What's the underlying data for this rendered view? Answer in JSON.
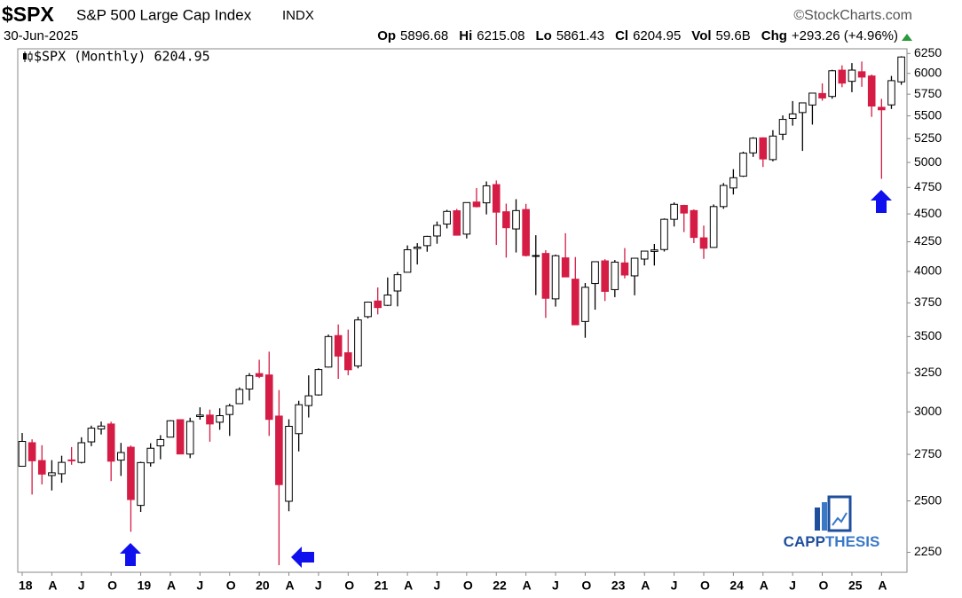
{
  "chart_data": {
    "type": "candlestick",
    "title": "$SPX",
    "subtitle": "S&P 500 Large Cap Index",
    "exchange": "INDX",
    "source": "©StockCharts.com",
    "date": "30-Jun-2025",
    "stats": [
      {
        "label": "Op",
        "value": "5896.68"
      },
      {
        "label": "Hi",
        "value": "6215.08"
      },
      {
        "label": "Lo",
        "value": "5861.43"
      },
      {
        "label": "Cl",
        "value": "6204.95"
      },
      {
        "label": "Vol",
        "value": "59.6B"
      },
      {
        "label": "Chg",
        "value": "+293.26 (+4.96%)"
      }
    ],
    "legend": "$SPX (Monthly) 6204.95",
    "logo": [
      "CAPP",
      "THESIS"
    ],
    "log_scale": true,
    "grid": false,
    "up_color": "#ffffff",
    "down_color": "#d41c45",
    "ylim": [
      2160,
      6310
    ],
    "yticks": [
      2250,
      2500,
      2750,
      3000,
      3250,
      3500,
      3750,
      4000,
      4250,
      4500,
      4750,
      5000,
      5250,
      5500,
      5750,
      6000,
      6250
    ],
    "categories": [
      "18",
      null,
      null,
      "A",
      null,
      null,
      "J",
      null,
      null,
      "O",
      null,
      null,
      "19",
      null,
      null,
      "A",
      null,
      null,
      "J",
      null,
      null,
      "O",
      null,
      null,
      "20",
      null,
      null,
      "A",
      null,
      null,
      "J",
      null,
      null,
      "O",
      null,
      null,
      "21",
      null,
      null,
      "A",
      null,
      null,
      "J",
      null,
      null,
      "O",
      null,
      null,
      "22",
      null,
      null,
      "A",
      null,
      null,
      "J",
      null,
      null,
      "O",
      null,
      null,
      "23",
      null,
      null,
      "A",
      null,
      null,
      "J",
      null,
      null,
      "O",
      null,
      null,
      "24",
      null,
      null,
      "A",
      null,
      null,
      "J",
      null,
      null,
      "O",
      null,
      null,
      "25",
      null,
      null,
      "A",
      null,
      null
    ],
    "open": [
      2683.73,
      2816.45,
      2715.22,
      2633.45,
      2642.96,
      2718.7,
      2704.95,
      2821.17,
      2896.96,
      2926.29,
      2717.58,
      2790.5,
      2476.96,
      2702.32,
      2798.22,
      2848.63,
      2952.33,
      2751.53,
      2971.41,
      2980.32,
      2937.09,
      2983.69,
      3050.72,
      3143.85,
      3244.67,
      3235.66,
      2974.28,
      2498.08,
      2869.09,
      3038.78,
      3105.92,
      3288.26,
      3507.44,
      3385.87,
      3296.2,
      3645.87,
      3764.61,
      3731.17,
      3842.51,
      3992.78,
      4191.98,
      4216.52,
      4300.73,
      4406.86,
      4528.8,
      4317.16,
      4610.62,
      4602.82,
      4778.14,
      4519.57,
      4363.14,
      4540.32,
      4130.61,
      4149.78,
      3781.0,
      4112.38,
      3936.73,
      3609.78,
      3901.79,
      4087.14,
      3853.29,
      4070.07,
      3963.34,
      4102.2,
      4166.79,
      4183.03,
      4450.48,
      4578.83,
      4530.6,
      4284.52,
      4201.27,
      4567.8,
      4745.2,
      4861.11,
      5098.51,
      5257.97,
      5029.03,
      5297.15,
      5471.08,
      5537.84,
      5623.89,
      5757.73,
      5723.22,
      6040.11,
      5903.26,
      6020.45,
      5968.33,
      5597.53,
      5625.14,
      5896.68
    ],
    "high": [
      2872.87,
      2835.96,
      2801.9,
      2717.49,
      2742.24,
      2791.47,
      2848.03,
      2916.5,
      2940.91,
      2939.86,
      2815.15,
      2800.18,
      2708.95,
      2813.49,
      2860.31,
      2949.52,
      2954.13,
      2964.15,
      3027.98,
      3013.59,
      3021.99,
      3050.1,
      3154.26,
      3247.93,
      3337.77,
      3393.52,
      3136.72,
      2954.86,
      3068.67,
      3233.13,
      3279.99,
      3514.77,
      3588.11,
      3549.85,
      3645.99,
      3760.2,
      3870.9,
      3950.43,
      3994.41,
      4218.78,
      4238.04,
      4302.43,
      4429.97,
      4537.36,
      4545.85,
      4608.08,
      4743.83,
      4808.93,
      4818.62,
      4595.31,
      4637.3,
      4593.45,
      4307.66,
      4177.51,
      4140.15,
      4325.28,
      4119.28,
      3905.42,
      4080.11,
      4100.96,
      4094.21,
      4195.44,
      4110.75,
      4170.06,
      4231.1,
      4458.48,
      4607.07,
      4584.62,
      4541.25,
      4393.57,
      4587.64,
      4793.3,
      4931.09,
      5111.06,
      5264.85,
      5263.95,
      5341.88,
      5505.53,
      5669.67,
      5651.62,
      5767.37,
      5878.46,
      6044.17,
      6099.97,
      6128.18,
      6147.43,
      5986.09,
      5695.31,
      5968.61,
      6215.08
    ],
    "low": [
      2682.36,
      2532.69,
      2585.89,
      2553.8,
      2594.62,
      2691.99,
      2698.95,
      2796.34,
      2864.12,
      2603.54,
      2631.09,
      2346.58,
      2443.96,
      2681.83,
      2722.27,
      2848.63,
      2750.52,
      2728.81,
      2952.22,
      2822.12,
      2891.85,
      2855.94,
      3050.72,
      3070.33,
      3214.64,
      2855.84,
      2191.86,
      2447.49,
      2766.64,
      2965.66,
      3101.17,
      3284.53,
      3209.45,
      3233.94,
      3279.74,
      3633.4,
      3662.71,
      3725.62,
      3723.34,
      3992.78,
      4056.88,
      4164.4,
      4233.13,
      4367.73,
      4305.91,
      4278.94,
      4560.0,
      4495.12,
      4222.62,
      4114.65,
      4157.87,
      4124.28,
      3810.32,
      3636.87,
      3721.56,
      3954.53,
      3584.13,
      3491.58,
      3698.15,
      3764.49,
      3794.33,
      3943.08,
      3808.86,
      4049.35,
      4048.28,
      4166.15,
      4385.05,
      4335.31,
      4238.63,
      4103.78,
      4197.74,
      4546.5,
      4682.11,
      4853.52,
      5056.82,
      4953.56,
      5011.05,
      5234.32,
      5390.95,
      5119.26,
      5402.62,
      5674.0,
      5696.51,
      5832.3,
      5773.31,
      5837.66,
      5488.73,
      4835.04,
      5578.64,
      5861.43
    ],
    "close": [
      2823.81,
      2713.83,
      2640.87,
      2648.05,
      2705.27,
      2718.37,
      2816.29,
      2901.52,
      2913.98,
      2711.74,
      2760.17,
      2506.85,
      2704.1,
      2784.49,
      2834.4,
      2945.83,
      2752.06,
      2941.76,
      2980.38,
      2926.46,
      2976.74,
      3037.56,
      3140.98,
      3230.78,
      3225.52,
      2954.22,
      2584.59,
      2912.43,
      3044.31,
      3100.29,
      3271.12,
      3500.31,
      3363.0,
      3269.96,
      3621.63,
      3756.07,
      3714.24,
      3811.15,
      3972.89,
      4181.17,
      4204.11,
      4297.5,
      4395.26,
      4522.68,
      4307.54,
      4605.38,
      4567.0,
      4766.18,
      4515.55,
      4373.94,
      4530.41,
      4131.93,
      4132.15,
      3785.38,
      4130.29,
      3955.0,
      3585.62,
      3871.98,
      4080.11,
      3839.5,
      4076.6,
      3970.15,
      4109.31,
      4169.48,
      4179.83,
      4450.38,
      4588.96,
      4507.66,
      4288.05,
      4193.8,
      4567.8,
      4769.83,
      4845.65,
      5096.27,
      5254.35,
      5035.69,
      5277.51,
      5460.48,
      5522.3,
      5648.4,
      5762.48,
      5705.45,
      6032.38,
      5881.63,
      6040.53,
      5954.5,
      5611.85,
      5569.06,
      5911.69,
      6204.95
    ]
  }
}
